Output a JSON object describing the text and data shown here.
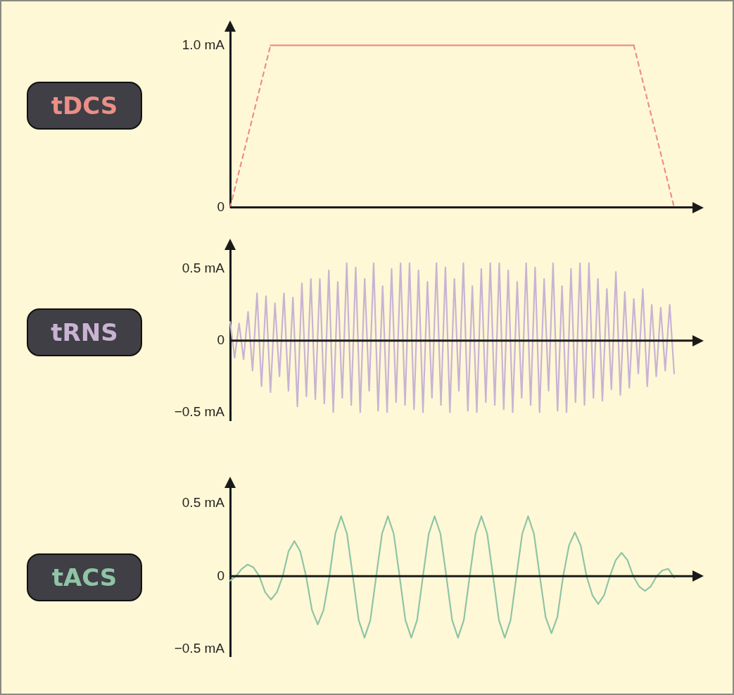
{
  "chart_data": [
    {
      "type": "line",
      "title": "tDCS",
      "marker": "none",
      "tick_labels": "y",
      "ylim": [
        0,
        1.1
      ],
      "yticks": [
        {
          "value": 0,
          "label": "0"
        },
        {
          "value": 1,
          "label": "1.0 mA"
        }
      ],
      "categories": [
        null,
        null,
        null,
        null,
        null,
        null,
        null,
        null,
        null,
        null,
        null,
        null
      ],
      "series": [
        {
          "color": "#ec8f86",
          "line_style": "dashed",
          "values": [
            0,
            1,
            null,
            null,
            null,
            null,
            null,
            null,
            null,
            null,
            null,
            null
          ]
        },
        {
          "color": "#ec8f86",
          "line_style": "solid",
          "values": [
            null,
            1,
            1,
            1,
            1,
            1,
            1,
            1,
            1,
            1,
            1,
            null
          ]
        },
        {
          "color": "#ec8f86",
          "line_style": "dashed",
          "values": [
            null,
            null,
            null,
            null,
            null,
            null,
            null,
            null,
            null,
            null,
            1,
            0
          ]
        }
      ]
    },
    {
      "type": "line",
      "title": "tRNS",
      "marker": "none",
      "tick_labels": "y",
      "ylim": [
        -0.56,
        0.65
      ],
      "yticks": [
        {
          "value": -0.5,
          "label": "−0.5 mA"
        },
        {
          "value": 0,
          "label": "0"
        },
        {
          "value": 0.5,
          "label": "0.5 mA"
        }
      ],
      "categories": [
        null,
        null,
        null,
        null,
        null,
        null,
        null,
        null,
        null,
        null,
        null,
        null,
        null,
        null,
        null,
        null,
        null,
        null,
        null,
        null,
        null,
        null,
        null,
        null,
        null,
        null,
        null,
        null,
        null,
        null,
        null,
        null,
        null,
        null,
        null,
        null,
        null,
        null,
        null,
        null,
        null,
        null,
        null,
        null,
        null,
        null,
        null,
        null,
        null,
        null,
        null,
        null,
        null,
        null,
        null,
        null,
        null,
        null,
        null,
        null,
        null,
        null,
        null,
        null,
        null,
        null,
        null,
        null,
        null,
        null,
        null,
        null,
        null,
        null,
        null,
        null,
        null,
        null,
        null,
        null,
        null,
        null,
        null,
        null,
        null,
        null,
        null,
        null,
        null,
        null,
        null,
        null,
        null,
        null,
        null,
        null,
        null,
        null,
        null,
        null
      ],
      "series": [
        {
          "color": "#c9b3d3",
          "line_style": "solid",
          "values": [
            0.13,
            -0.12,
            0.12,
            -0.13,
            0.2,
            -0.21,
            0.33,
            -0.32,
            0.31,
            -0.36,
            0.26,
            -0.25,
            0.33,
            -0.35,
            0.3,
            -0.46,
            0.4,
            -0.39,
            0.43,
            -0.41,
            0.43,
            -0.44,
            0.49,
            -0.5,
            0.41,
            -0.4,
            0.54,
            -0.45,
            0.51,
            -0.5,
            0.43,
            -0.35,
            0.54,
            -0.49,
            0.38,
            -0.5,
            0.5,
            -0.43,
            0.54,
            -0.45,
            0.54,
            -0.48,
            0.49,
            -0.5,
            0.41,
            -0.4,
            0.54,
            -0.45,
            0.51,
            -0.5,
            0.43,
            -0.35,
            0.54,
            -0.49,
            0.38,
            -0.5,
            0.5,
            -0.43,
            0.54,
            -0.45,
            0.54,
            -0.48,
            0.49,
            -0.5,
            0.41,
            -0.4,
            0.54,
            -0.45,
            0.51,
            -0.5,
            0.43,
            -0.35,
            0.54,
            -0.49,
            0.38,
            -0.5,
            0.5,
            -0.43,
            0.54,
            -0.45,
            0.54,
            -0.4,
            0.43,
            -0.42,
            0.36,
            -0.34,
            0.48,
            -0.38,
            0.34,
            -0.33,
            0.29,
            -0.23,
            0.36,
            -0.32,
            0.25,
            -0.25,
            0.23,
            -0.21,
            0.25,
            -0.23
          ]
        }
      ]
    },
    {
      "type": "line",
      "title": "tACS",
      "marker": "none",
      "tick_labels": "y",
      "ylim": [
        -0.55,
        0.62
      ],
      "yticks": [
        {
          "value": -0.5,
          "label": "−0.5 mA"
        },
        {
          "value": 0,
          "label": "0"
        },
        {
          "value": 0.5,
          "label": "0.5 mA"
        }
      ],
      "categories": [
        null,
        null,
        null,
        null,
        null,
        null,
        null,
        null,
        null,
        null,
        null,
        null,
        null,
        null,
        null,
        null,
        null,
        null,
        null,
        null,
        null,
        null,
        null,
        null,
        null,
        null,
        null,
        null,
        null,
        null,
        null,
        null,
        null,
        null,
        null,
        null,
        null,
        null,
        null,
        null,
        null,
        null,
        null,
        null,
        null,
        null,
        null,
        null,
        null,
        null,
        null,
        null,
        null,
        null,
        null,
        null,
        null,
        null,
        null,
        null,
        null,
        null,
        null,
        null,
        null,
        null,
        null,
        null,
        null,
        null,
        null,
        null,
        null,
        null,
        null,
        null,
        null
      ],
      "series": [
        {
          "color": "#8fc4a6",
          "line_style": "solid",
          "values": [
            -0.03,
            0,
            0.05,
            0.08,
            0.06,
            0,
            -0.11,
            -0.16,
            -0.11,
            0,
            0.17,
            0.24,
            0.17,
            0,
            -0.23,
            -0.33,
            -0.23,
            0,
            0.29,
            0.41,
            0.29,
            0,
            -0.3,
            -0.42,
            -0.3,
            0,
            0.29,
            0.41,
            0.29,
            0,
            -0.3,
            -0.42,
            -0.3,
            0,
            0.29,
            0.41,
            0.29,
            0,
            -0.3,
            -0.42,
            -0.3,
            0,
            0.29,
            0.41,
            0.29,
            0,
            -0.3,
            -0.42,
            -0.3,
            0,
            0.29,
            0.41,
            0.29,
            0,
            -0.28,
            -0.39,
            -0.28,
            0,
            0.21,
            0.3,
            0.21,
            0,
            -0.13,
            -0.19,
            -0.13,
            0,
            0.11,
            0.16,
            0.11,
            0,
            -0.07,
            -0.1,
            -0.07,
            0,
            0.04,
            0.05,
            -0.01
          ]
        }
      ]
    }
  ]
}
